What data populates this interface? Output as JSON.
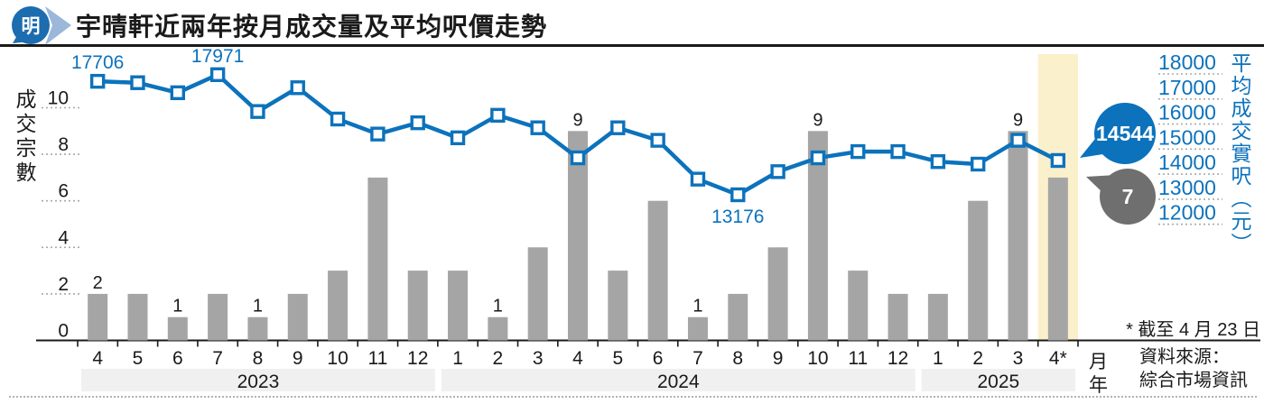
{
  "header": {
    "logo_text": "明",
    "title": "宇晴軒近兩年按月成交量及平均呎價走勢"
  },
  "chart_data": {
    "type": "bar+line combo",
    "title": "宇晴軒近兩年按月成交量及平均呎價走勢",
    "months": [
      "4",
      "5",
      "6",
      "7",
      "8",
      "9",
      "10",
      "11",
      "12",
      "1",
      "2",
      "3",
      "4",
      "5",
      "6",
      "7",
      "8",
      "9",
      "10",
      "11",
      "12",
      "1",
      "2",
      "3",
      "4*"
    ],
    "years": [
      {
        "label": "2023",
        "start": 0,
        "count": 9
      },
      {
        "label": "2024",
        "start": 9,
        "count": 12
      },
      {
        "label": "2025",
        "start": 21,
        "count": 4
      }
    ],
    "bars": {
      "name": "成交宗數",
      "values": [
        2,
        2,
        1,
        2,
        1,
        2,
        3,
        7,
        3,
        3,
        1,
        4,
        9,
        3,
        6,
        1,
        2,
        4,
        9,
        3,
        2,
        2,
        6,
        9,
        7
      ],
      "value_labels": {
        "0": "2",
        "2": "1",
        "4": "1",
        "10": "1",
        "12": "9",
        "15": "1",
        "18": "9",
        "23": "9"
      }
    },
    "line": {
      "name": "平均成交實呎(元)",
      "values": [
        17706,
        17650,
        17250,
        17971,
        16500,
        17450,
        16200,
        15600,
        16050,
        15450,
        16350,
        15850,
        14650,
        15850,
        15350,
        13800,
        13176,
        14100,
        14650,
        14900,
        14900,
        14500,
        14400,
        15350,
        14544
      ],
      "point_labels": [
        {
          "index": 0,
          "text": "17706",
          "position": "above"
        },
        {
          "index": 3,
          "text": "17971",
          "position": "above"
        },
        {
          "index": 16,
          "text": "13176",
          "position": "below"
        }
      ]
    },
    "left_axis": {
      "title": "成交宗數",
      "ticks": [
        0,
        2,
        4,
        6,
        8,
        10
      ],
      "range": [
        0,
        12
      ]
    },
    "right_axis": {
      "title": "平均成交實呎（元）",
      "ticks": [
        18000,
        17000,
        16000,
        15000,
        14000,
        13000,
        12000
      ],
      "range": [
        12000,
        18000
      ]
    },
    "x_axis": {
      "month_label": "月",
      "year_label": "年"
    },
    "highlight_index": 24,
    "callouts": {
      "price": {
        "text": "14544"
      },
      "volume": {
        "text": "7"
      }
    },
    "legend_position": "none",
    "grid": "dotted tick underlines only"
  },
  "annotations": {
    "footnote": "* 截至 4 月 23 日",
    "source_line1": "資料來源：",
    "source_line2": "綜合市場資訊"
  },
  "colors": {
    "line_blue": "#0c72bc",
    "bar_gray": "#a5a5a5",
    "highlight_yellow": "#fbf0cc",
    "year_band_gray": "#f0f0f0",
    "bubble_gray": "#6f6f6f",
    "text_black": "#1a1a1a",
    "grid_dot": "#aaaaaa",
    "logo_dark_blue": "#1c6cb0",
    "logo_light_blue": "#9bb7da"
  }
}
